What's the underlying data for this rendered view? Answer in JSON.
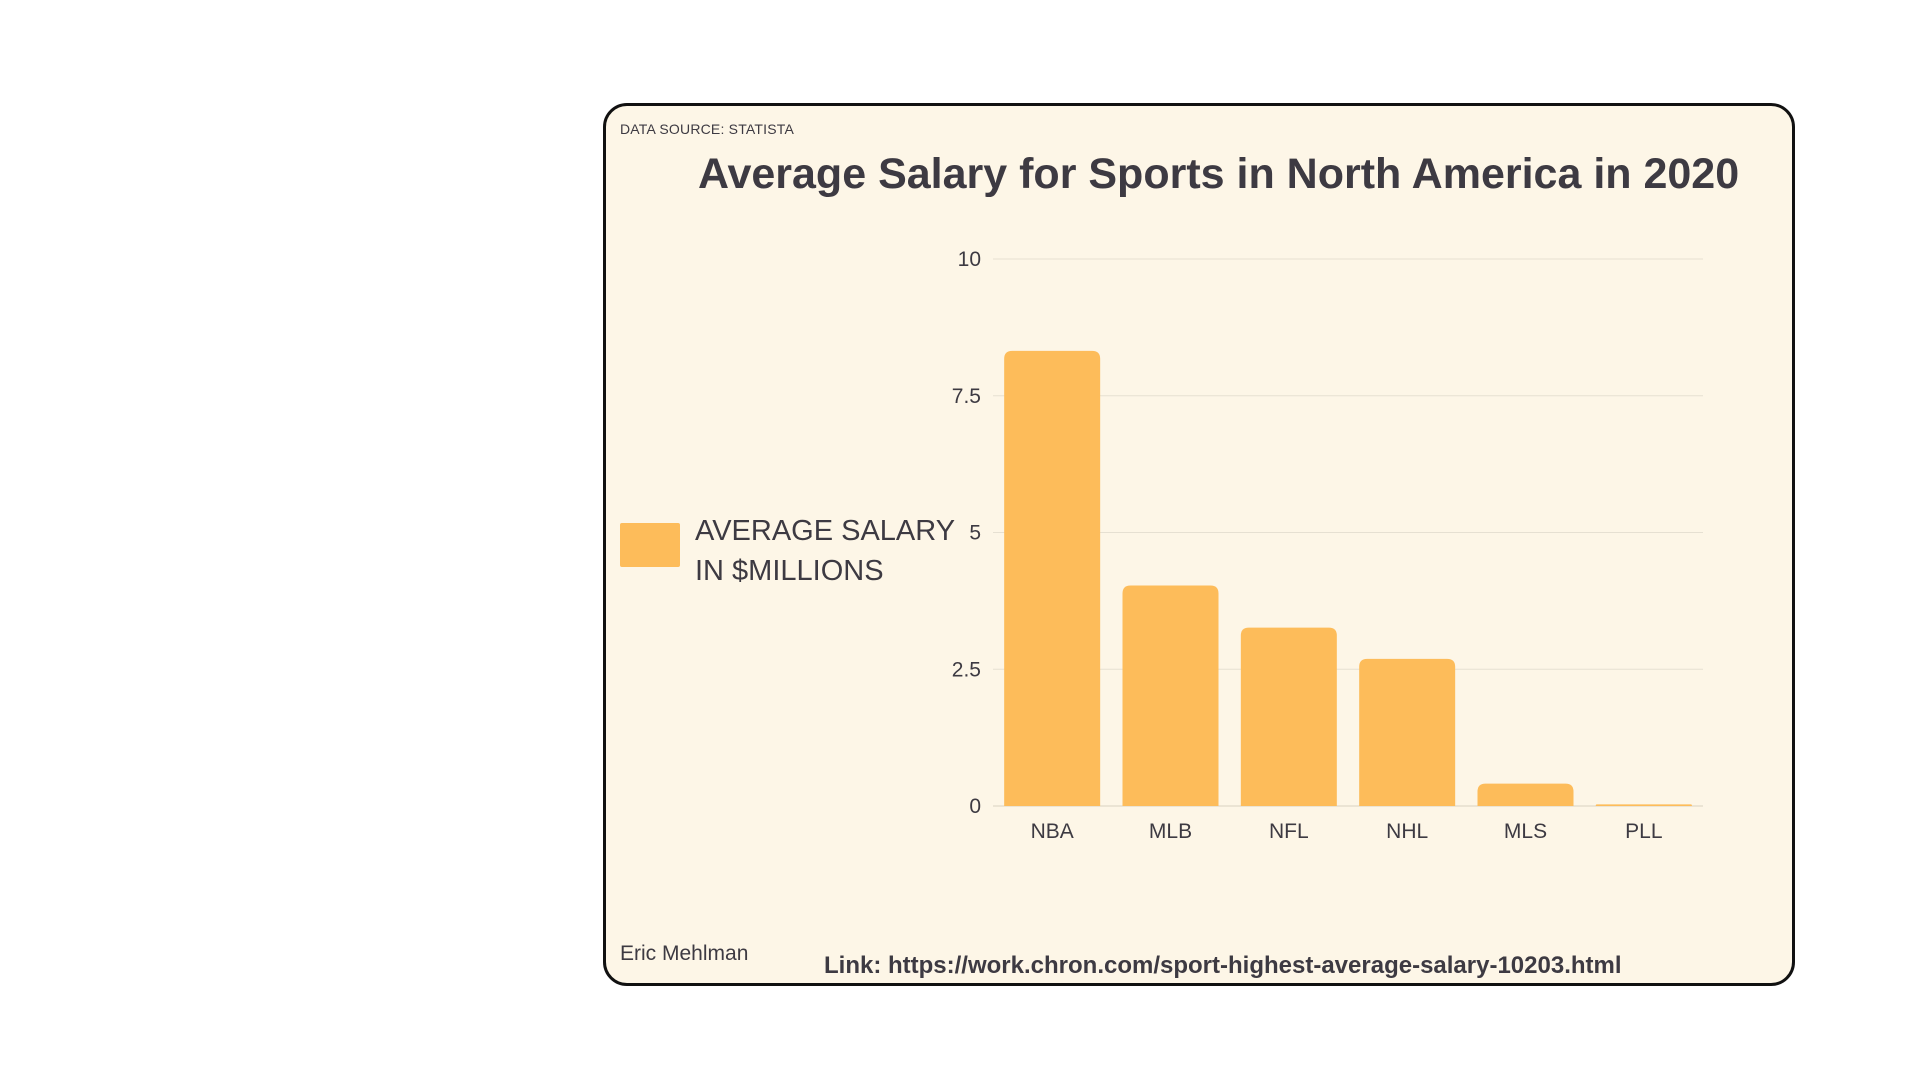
{
  "header": {
    "source_note": "DATA SOURCE: STATISTA",
    "title": "Average Salary for Sports in North America in 2020"
  },
  "footer": {
    "author": "Eric Mehlman",
    "link": "Link: https://work.chron.com/sport-highest-average-salary-10203.html"
  },
  "colors": {
    "bar": "#fdbc5a",
    "grid": "#e6e0d2",
    "background": "#fdf6e7",
    "text": "#3d3a42"
  },
  "chart_data": {
    "type": "bar",
    "title": "Average Salary for Sports in North America in 2020",
    "categories": [
      "NBA",
      "MLB",
      "NFL",
      "NHL",
      "MLS",
      "PLL"
    ],
    "series": [
      {
        "name": "AVERAGE SALARY IN $MILLIONS",
        "values": [
          8.32,
          4.03,
          3.26,
          2.69,
          0.41,
          0.03
        ]
      }
    ],
    "xlabel": "",
    "ylabel": "",
    "ylim": [
      0,
      10
    ],
    "yticks": [
      "0",
      "2.5",
      "5",
      "7.5",
      "10"
    ],
    "grid": true,
    "legend_position": "left"
  }
}
